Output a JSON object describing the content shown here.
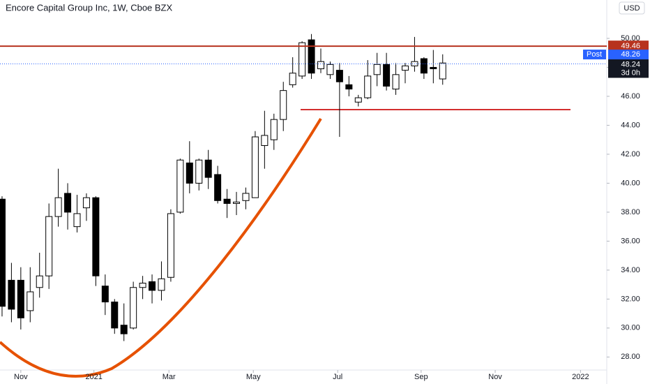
{
  "chart_data": {
    "type": "candlestick",
    "title": "Encore Capital Group Inc, 1W, Cboe BZX",
    "currency": "USD",
    "up_color": "#ffffff",
    "down_color": "#000000",
    "wick_color": "#000000",
    "categories": [
      null,
      null,
      null,
      null,
      null,
      null,
      null,
      null,
      null,
      null,
      null,
      null,
      null,
      null,
      null,
      null,
      null,
      null,
      null,
      null,
      null,
      null,
      null,
      null,
      null,
      null,
      null,
      null,
      null,
      null,
      null,
      null,
      null,
      null,
      null,
      null,
      null,
      null,
      null,
      null,
      null,
      null,
      null,
      null,
      null,
      null,
      null,
      null
    ],
    "open": [
      38.9,
      33.3,
      33.3,
      31.2,
      32.8,
      33.6,
      37.7,
      39.3,
      37.0,
      38.3,
      39.0,
      32.9,
      31.8,
      30.2,
      30.0,
      32.8,
      33.2,
      32.6,
      33.5,
      38.0,
      41.4,
      40.0,
      41.6,
      40.6,
      38.9,
      38.6,
      38.8,
      39.0,
      42.6,
      43.0,
      44.4,
      46.8,
      47.4,
      49.9,
      47.9,
      47.5,
      47.8,
      46.8,
      45.6,
      45.9,
      47.5,
      48.2,
      46.5,
      47.8,
      48.1,
      48.6,
      48.0,
      47.2
    ],
    "high": [
      39.1,
      34.5,
      34.2,
      34.2,
      35.2,
      38.6,
      41.0,
      40.0,
      39.2,
      39.3,
      39.1,
      33.7,
      32.0,
      31.7,
      33.2,
      33.6,
      33.7,
      34.6,
      38.2,
      41.7,
      42.9,
      41.7,
      42.3,
      41.2,
      39.6,
      39.4,
      39.7,
      43.6,
      45.0,
      44.8,
      47.0,
      48.7,
      49.8,
      50.3,
      49.3,
      48.4,
      48.3,
      47.4,
      46.1,
      48.5,
      49.0,
      49.0,
      48.3,
      48.3,
      50.1,
      48.7,
      49.2,
      48.9
    ],
    "low": [
      30.8,
      30.4,
      29.9,
      30.4,
      32.1,
      32.7,
      37.0,
      36.8,
      36.6,
      37.4,
      32.9,
      30.9,
      29.6,
      29.1,
      29.9,
      32.0,
      31.7,
      31.9,
      33.2,
      37.9,
      39.3,
      39.5,
      39.6,
      38.6,
      37.6,
      37.8,
      38.2,
      39.0,
      41.0,
      42.3,
      43.6,
      46.6,
      47.2,
      47.2,
      47.6,
      47.2,
      43.2,
      46.0,
      45.3,
      45.8,
      46.7,
      46.4,
      46.1,
      46.9,
      47.7,
      47.2,
      46.9,
      46.8
    ],
    "close": [
      31.5,
      31.3,
      30.7,
      32.5,
      33.6,
      37.7,
      39.0,
      38.0,
      37.9,
      39.0,
      33.6,
      31.8,
      30.0,
      29.6,
      32.8,
      33.1,
      32.6,
      33.4,
      37.9,
      41.6,
      40.0,
      41.6,
      40.4,
      38.8,
      38.6,
      38.7,
      39.3,
      43.2,
      43.3,
      44.4,
      46.4,
      47.6,
      49.7,
      47.6,
      48.4,
      48.2,
      47.0,
      46.5,
      45.9,
      47.4,
      48.2,
      46.7,
      47.5,
      48.1,
      48.4,
      47.6,
      47.9,
      48.3
    ],
    "ylim": [
      27.1,
      52.65
    ],
    "yticks": [
      {
        "value": 28,
        "label": "28.00"
      },
      {
        "value": 30,
        "label": "30.00"
      },
      {
        "value": 32,
        "label": "32.00"
      },
      {
        "value": 34,
        "label": "34.00"
      },
      {
        "value": 36,
        "label": "36.00"
      },
      {
        "value": 38,
        "label": "38.00"
      },
      {
        "value": 40,
        "label": "40.00"
      },
      {
        "value": 42,
        "label": "42.00"
      },
      {
        "value": 44,
        "label": "44.00"
      },
      {
        "value": 46,
        "label": "46.00"
      },
      {
        "value": 48,
        "label": "48.00"
      },
      {
        "value": 50,
        "label": "50.00"
      }
    ],
    "xlim": [
      -0.22,
      64.5
    ],
    "xticks": [
      {
        "value": 2.0,
        "label": "Nov"
      },
      {
        "value": 9.8,
        "label": "2021"
      },
      {
        "value": 17.8,
        "label": "Mar"
      },
      {
        "value": 26.8,
        "label": "May"
      },
      {
        "value": 35.8,
        "label": "Jul"
      },
      {
        "value": 44.7,
        "label": "Sep"
      },
      {
        "value": 52.6,
        "label": "Nov"
      },
      {
        "value": 61.7,
        "label": "2022"
      }
    ],
    "price_line": {
      "value": 49.46,
      "color": "#b7321e"
    },
    "last_price": {
      "value": 48.24,
      "countdown": "3d 0h",
      "color": "#2962ff"
    },
    "post_market": {
      "name": "Post",
      "value": 48.26,
      "color": "#2962ff"
    }
  }
}
